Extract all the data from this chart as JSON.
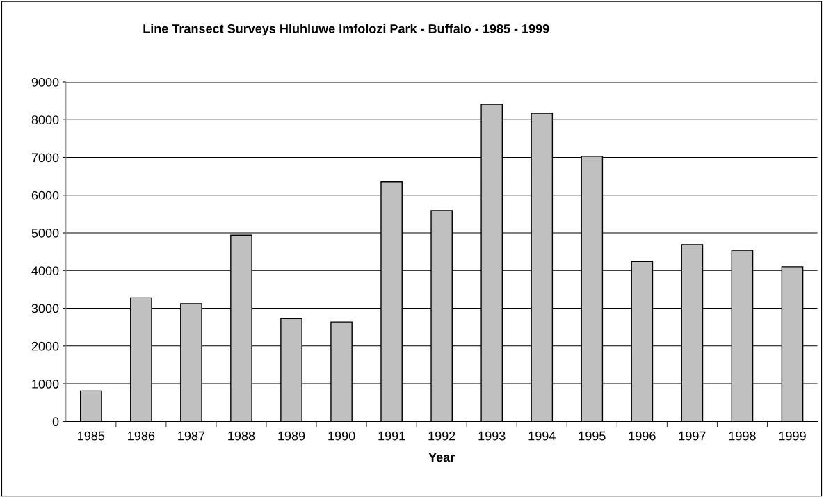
{
  "chart_data": {
    "type": "bar",
    "title": "Line Transect Surveys Hluhluwe Imfolozi Park - Buffalo - 1985 - 1999",
    "xlabel": "Year",
    "categories": [
      "1985",
      "1986",
      "1987",
      "1988",
      "1989",
      "1990",
      "1991",
      "1992",
      "1993",
      "1994",
      "1995",
      "1996",
      "1997",
      "1998",
      "1999"
    ],
    "values": [
      810,
      3280,
      3120,
      4940,
      2730,
      2640,
      6350,
      5590,
      8410,
      8170,
      7030,
      4240,
      4690,
      4540,
      4100
    ],
    "color": "#c0c0c0",
    "ylim": [
      0,
      9000
    ],
    "yticks": [
      0,
      1000,
      2000,
      3000,
      4000,
      5000,
      6000,
      7000,
      8000,
      9000
    ],
    "grid": "y"
  }
}
